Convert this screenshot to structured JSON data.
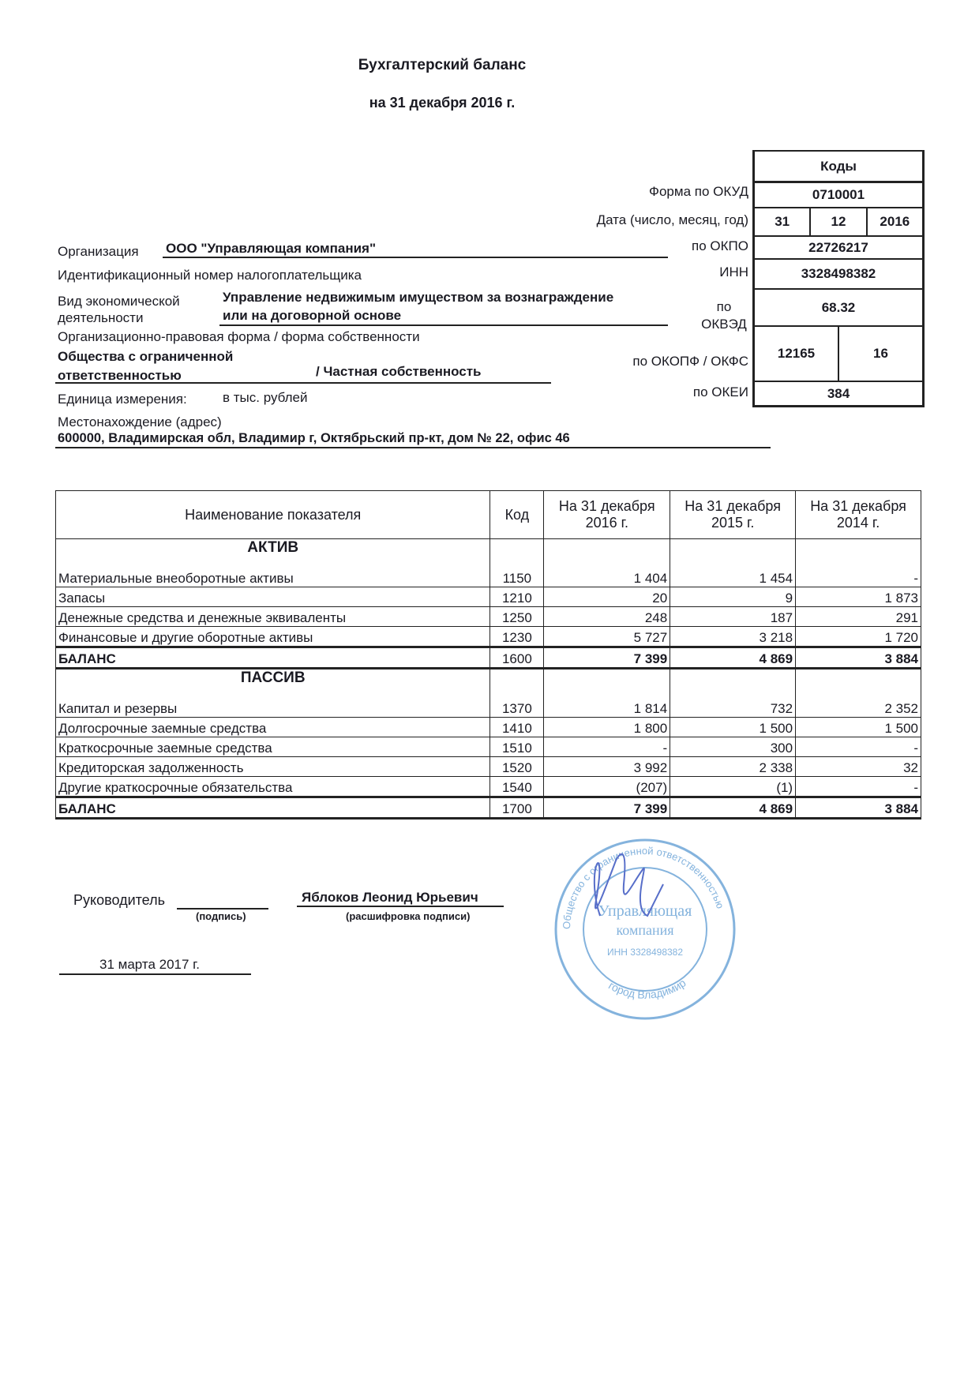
{
  "title": "Бухгалтерский баланс",
  "subtitle": "на 31 декабря 2016 г.",
  "codes": {
    "header": "Коды",
    "okud_label": "Форма по ОКУД",
    "okud": "0710001",
    "date_label": "Дата (число, месяц, год)",
    "day": "31",
    "month": "12",
    "year": "2016",
    "okpo_label": "по ОКПО",
    "okpo": "22726217",
    "inn_label": "ИНН",
    "inn": "3328498382",
    "okved_label": "по ОКВЭД",
    "okved": "68.32",
    "okopf_label": "по ОКОПФ / ОКФС",
    "okopf": "12165",
    "okfs": "16",
    "okei_label": "по ОКЕИ",
    "okei": "384"
  },
  "org": {
    "org_label": "Организация",
    "org_name": "ООО \"Управляющая компания\"",
    "inn_label": "Идентификационный номер налогоплательщика",
    "activity_label_1": "Вид экономической",
    "activity_label_2": "деятельности",
    "activity_1": "Управление недвижимым имуществом за вознаграждение",
    "activity_2": "или на договорной основе",
    "form_label": "Организационно-правовая форма / форма собственности",
    "form_1": "Общества с ограниченной",
    "form_2": "ответственностью",
    "ownership": "/  Частная собственность",
    "unit_label": "Единица измерения:",
    "unit": "в тыс. рублей",
    "address_label": "Местонахождение (адрес)",
    "address": "600000, Владимирская обл, Владимир г, Октябрьский пр-кт, дом № 22, офис 46"
  },
  "table": {
    "headers": [
      "Наименование показателя",
      "Код",
      "На 31 декабря 2016 г.",
      "На 31 декабря 2015 г.",
      "На 31 декабря 2014 г."
    ],
    "rows": [
      {
        "section": "АКТИВ",
        "name": "Материальные внеоборотные активы",
        "code": "1150",
        "v2016": "1 404",
        "v2015": "1 454",
        "v2014": "-"
      },
      {
        "name": "Запасы",
        "code": "1210",
        "v2016": "20",
        "v2015": "9",
        "v2014": "1 873"
      },
      {
        "name": "Денежные средства и денежные эквиваленты",
        "code": "1250",
        "v2016": "248",
        "v2015": "187",
        "v2014": "291"
      },
      {
        "name": "Финансовые и другие оборотные активы",
        "code": "1230",
        "v2016": "5 727",
        "v2015": "3 218",
        "v2014": "1 720"
      },
      {
        "name": "БАЛАНС",
        "code": "1600",
        "v2016": "7 399",
        "v2015": "4 869",
        "v2014": "3 884",
        "total": true
      },
      {
        "section": "ПАССИВ",
        "name": "Капитал и резервы",
        "code": "1370",
        "v2016": "1 814",
        "v2015": "732",
        "v2014": "2 352"
      },
      {
        "name": "Долгосрочные заемные средства",
        "code": "1410",
        "v2016": "1 800",
        "v2015": "1 500",
        "v2014": "1 500"
      },
      {
        "name": "Краткосрочные заемные средства",
        "code": "1510",
        "v2016": "-",
        "v2015": "300",
        "v2014": "-"
      },
      {
        "name": "Кредиторская задолженность",
        "code": "1520",
        "v2016": "3 992",
        "v2015": "2 338",
        "v2014": "32"
      },
      {
        "name": "Другие краткосрочные обязательства",
        "code": "1540",
        "v2016": "(207)",
        "v2015": "(1)",
        "v2014": "-"
      },
      {
        "name": "БАЛАНС",
        "code": "1700",
        "v2016": "7 399",
        "v2015": "4 869",
        "v2014": "3 884",
        "total": true
      }
    ]
  },
  "signature": {
    "role": "Руководитель",
    "signature_caption": "(подпись)",
    "name": "Яблоков  Леонид Юрьевич",
    "name_caption": "(расшифровка подписи)",
    "date": "31 марта 2017 г.",
    "stamp_text_top": "Общество с ограниченной ответственностью",
    "stamp_center_1": "Управляющая",
    "stamp_center_2": "компания",
    "stamp_inn": "ИНН 3328498382",
    "stamp_city": "город Владимир",
    "stamp_color": "#6fa6d8",
    "ink_color": "#3a55c0"
  }
}
